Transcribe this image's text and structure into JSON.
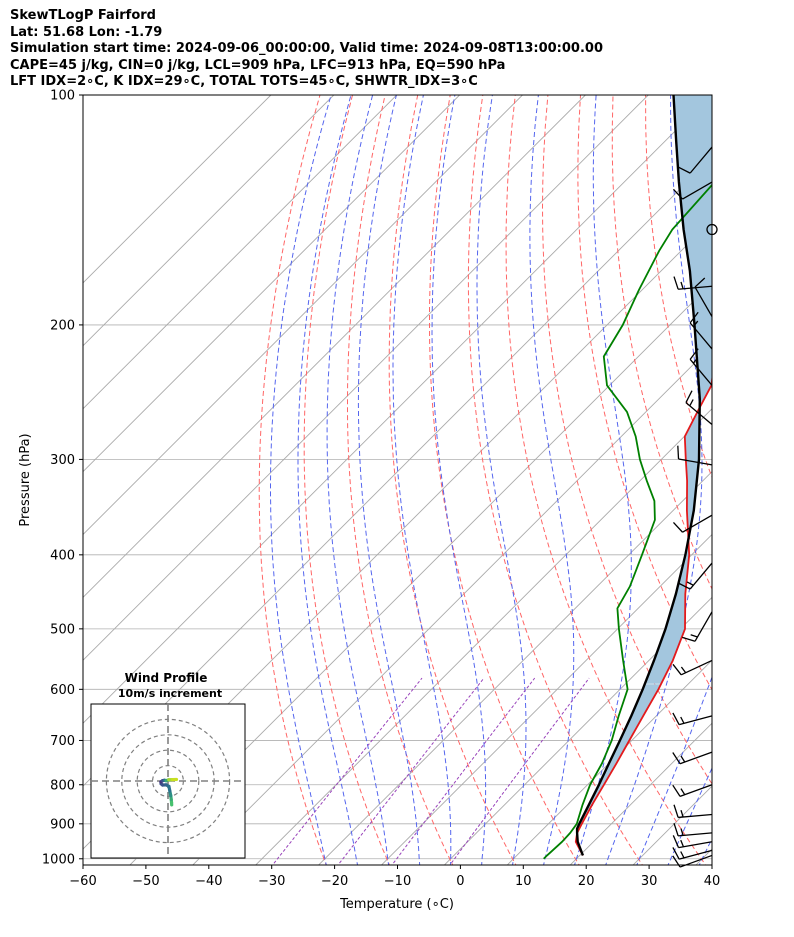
{
  "header": {
    "line1": "SkewTLogP Fairford",
    "line2": "Lat: 51.68   Lon: -1.79",
    "line3": "Simulation start time: 2024-09-06_00:00:00, Valid time: 2024-09-08T13:00:00.00",
    "line4": "CAPE=45 j/kg, CIN=0 j/kg, LCL=909 hPa, LFC=913 hPa, EQ=590 hPa",
    "line5": "LFT IDX=2∘C, K IDX=29∘C, TOTAL TOTS=45∘C, SHWTR_IDX=3∘C"
  },
  "colors": {
    "temperature": "#e31a1c",
    "dewpoint": "#008000",
    "parcel": "#000000",
    "cape_fill": "#a3c6de",
    "dry_adiabat": "#ff6666",
    "moist_adiabat": "#5566ee",
    "mixing_ratio": "#9944bb",
    "isotherm": "#aaaaaa",
    "hodo_ring": "#808080"
  },
  "chart_data": {
    "type": "skewt",
    "title": "SkewTLogP Fairford",
    "xlabel": "Temperature (∘C)",
    "ylabel": "Pressure (hPa)",
    "xlim": [
      -60,
      40
    ],
    "ylim": [
      1050,
      100
    ],
    "x_ticks": [
      "−60",
      "−50",
      "−40",
      "−30",
      "−20",
      "−10",
      "0",
      "10",
      "20",
      "30",
      "40"
    ],
    "x_tick_values": [
      -60,
      -50,
      -40,
      -30,
      -20,
      -10,
      0,
      10,
      20,
      30,
      40
    ],
    "y_ticks": [
      {
        "p": 100,
        "label": "100"
      },
      {
        "p": 200,
        "label": "200"
      },
      {
        "p": 300,
        "label": "300"
      },
      {
        "p": 400,
        "label": "400"
      },
      {
        "p": 500,
        "label": "500"
      },
      {
        "p": 600,
        "label": "600"
      },
      {
        "p": 700,
        "label": "700"
      },
      {
        "p": 800,
        "label": "800"
      },
      {
        "p": 900,
        "label": "900"
      },
      {
        "p": 1000,
        "label": "1000"
      }
    ],
    "temperature_profile": [
      [
        990,
        20.5
      ],
      [
        950,
        17.2
      ],
      [
        925,
        16.0
      ],
      [
        900,
        15.3
      ],
      [
        850,
        13.9
      ],
      [
        800,
        12.6
      ],
      [
        750,
        11.2
      ],
      [
        700,
        9.6
      ],
      [
        650,
        7.9
      ],
      [
        600,
        6.1
      ],
      [
        550,
        3.8
      ],
      [
        500,
        0.7
      ],
      [
        450,
        -4.8
      ],
      [
        400,
        -10.4
      ],
      [
        350,
        -17.8
      ],
      [
        320,
        -22.5
      ],
      [
        300,
        -26.1
      ],
      [
        280,
        -29.9
      ],
      [
        260,
        -31.8
      ],
      [
        240,
        -33.8
      ],
      [
        220,
        -37.8
      ],
      [
        200,
        -42.7
      ],
      [
        180,
        -48.5
      ],
      [
        170,
        -51.0
      ],
      [
        160,
        -53.0
      ],
      [
        150,
        -53.3
      ],
      [
        140,
        -53.0
      ],
      [
        130,
        -52.7
      ],
      [
        120,
        -53.7
      ],
      [
        110,
        -54.3
      ],
      [
        100,
        -55.5
      ]
    ],
    "dewpoint_profile": [
      [
        1000,
        14.8
      ],
      [
        990,
        14.8
      ],
      [
        950,
        15.0
      ],
      [
        925,
        14.9
      ],
      [
        900,
        14.5
      ],
      [
        850,
        12.4
      ],
      [
        800,
        10.4
      ],
      [
        750,
        8.9
      ],
      [
        700,
        6.8
      ],
      [
        650,
        4.0
      ],
      [
        600,
        1.2
      ],
      [
        550,
        -4.1
      ],
      [
        500,
        -9.8
      ],
      [
        470,
        -13.3
      ],
      [
        440,
        -14.8
      ],
      [
        400,
        -17.9
      ],
      [
        380,
        -19.6
      ],
      [
        360,
        -21.4
      ],
      [
        340,
        -24.5
      ],
      [
        320,
        -28.9
      ],
      [
        300,
        -33.4
      ],
      [
        280,
        -37.7
      ],
      [
        260,
        -43.0
      ],
      [
        240,
        -50.4
      ],
      [
        220,
        -55.5
      ],
      [
        200,
        -57.5
      ],
      [
        180,
        -60.5
      ],
      [
        160,
        -63.5
      ],
      [
        150,
        -64.8
      ],
      [
        130,
        -65.6
      ],
      [
        120,
        -66.0
      ],
      [
        110,
        -67.0
      ],
      [
        100,
        -68.5
      ]
    ],
    "parcel_profile": [
      [
        990,
        20.5
      ],
      [
        950,
        17.5
      ],
      [
        925,
        16.0
      ],
      [
        913,
        15.3
      ],
      [
        900,
        14.9
      ],
      [
        850,
        13.4
      ],
      [
        800,
        11.8
      ],
      [
        750,
        10.0
      ],
      [
        700,
        8.1
      ],
      [
        650,
        6.0
      ],
      [
        600,
        3.6
      ],
      [
        550,
        0.8
      ],
      [
        500,
        -2.4
      ],
      [
        450,
        -6.3
      ],
      [
        400,
        -11.0
      ],
      [
        350,
        -16.7
      ],
      [
        300,
        -24.0
      ],
      [
        250,
        -33.5
      ],
      [
        200,
        -46.1
      ],
      [
        170,
        -55.4
      ],
      [
        150,
        -63.0
      ],
      [
        130,
        -71.3
      ],
      [
        115,
        -78.2
      ],
      [
        100,
        -86.0
      ]
    ],
    "barbs": [
      {
        "p": 990,
        "speed_kt": 12,
        "dir_deg": 250
      },
      {
        "p": 975,
        "speed_kt": 14,
        "dir_deg": 255
      },
      {
        "p": 950,
        "speed_kt": 15,
        "dir_deg": 260
      },
      {
        "p": 925,
        "speed_kt": 15,
        "dir_deg": 265
      },
      {
        "p": 875,
        "speed_kt": 15,
        "dir_deg": 265
      },
      {
        "p": 800,
        "speed_kt": 15,
        "dir_deg": 250
      },
      {
        "p": 725,
        "speed_kt": 15,
        "dir_deg": 250
      },
      {
        "p": 650,
        "speed_kt": 15,
        "dir_deg": 255
      },
      {
        "p": 550,
        "speed_kt": 15,
        "dir_deg": 245
      },
      {
        "p": 475,
        "speed_kt": 15,
        "dir_deg": 210
      },
      {
        "p": 410,
        "speed_kt": 15,
        "dir_deg": 220
      },
      {
        "p": 355,
        "speed_kt": 10,
        "dir_deg": 240
      },
      {
        "p": 305,
        "speed_kt": 10,
        "dir_deg": 280
      },
      {
        "p": 270,
        "speed_kt": 15,
        "dir_deg": 310
      },
      {
        "p": 240,
        "speed_kt": 15,
        "dir_deg": 320
      },
      {
        "p": 215,
        "speed_kt": 15,
        "dir_deg": 320
      },
      {
        "p": 195,
        "speed_kt": 10,
        "dir_deg": 330
      },
      {
        "p": 178,
        "speed_kt": 15,
        "dir_deg": 265
      },
      {
        "p": 150,
        "speed_kt": 0,
        "dir_deg": 0
      },
      {
        "p": 130,
        "speed_kt": 10,
        "dir_deg": 240
      },
      {
        "p": 117,
        "speed_kt": 10,
        "dir_deg": 220
      }
    ],
    "hodograph": {
      "title": "Wind Profile",
      "subtitle": "10m/s increment",
      "rings_ms": [
        10,
        20,
        30,
        40
      ],
      "max_ms": 50,
      "points_uv": [
        [
          2.4,
          -15.5
        ],
        [
          2.3,
          -14.0
        ],
        [
          2.1,
          -12.0
        ],
        [
          1.8,
          -9.5
        ],
        [
          1.2,
          -6.5
        ],
        [
          0.6,
          -3.5
        ],
        [
          -1.2,
          -2.5
        ],
        [
          -3.5,
          -2.6
        ],
        [
          -4.5,
          -1.8
        ],
        [
          -4.6,
          -0.6
        ],
        [
          -3.6,
          0.2
        ],
        [
          -2.2,
          0.5
        ],
        [
          -1.2,
          0.2
        ],
        [
          0.5,
          0.8
        ],
        [
          3.0,
          0.9
        ],
        [
          5.5,
          1.0
        ]
      ],
      "colors": [
        "#47c16e",
        "#47c16e",
        "#3aaa76",
        "#2c8e85",
        "#2c738e",
        "#2c738e",
        "#33638d",
        "#3b528b",
        "#3b528b",
        "#46337e",
        "#3b528b",
        "#2c738e",
        "#3aaa76",
        "#a8db34",
        "#c8e020",
        "#c8e020"
      ]
    }
  }
}
